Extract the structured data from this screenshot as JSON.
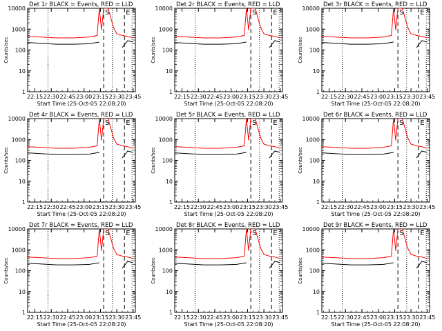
{
  "figure": {
    "background": "#ffffff",
    "events_color": "#000000",
    "lld_color": "#ff0000"
  },
  "chart_data": [
    {
      "type": "line",
      "title": "Det 1r BLACK = Events, RED = LLD",
      "xlabel": "Start Time (25-Oct-05 22:08:20)",
      "ylabel": "Counts/sec",
      "x_tick_labels": [
        "22:15",
        "22:30",
        "22:45",
        "23:00",
        "23:15",
        "23:30",
        "23:45"
      ],
      "y_tick_labels": [
        "1",
        "10",
        "100",
        "1000",
        "10000"
      ],
      "yscale": "log",
      "ylim": [
        1,
        10000
      ],
      "xlim": [
        "22:08:20",
        "23:47"
      ],
      "marker_labels": [
        "S",
        "E"
      ],
      "marker_times": [
        "23:18",
        "23:37"
      ],
      "dotted_markers": [
        "22:27",
        "23:26",
        "23:44"
      ],
      "series": [
        {
          "name": "Events",
          "x": [
            "22:08",
            "22:20",
            "22:35",
            "22:50",
            "23:05",
            "23:14",
            "23:18",
            "23:27",
            "23:33",
            "23:35",
            "23:40",
            "23:45"
          ],
          "values": [
            230,
            210,
            190,
            190,
            200,
            240,
            null,
            null,
            null,
            130,
            280,
            240
          ]
        },
        {
          "name": "LLD",
          "x": [
            "22:08",
            "22:20",
            "22:35",
            "22:50",
            "23:05",
            "23:12",
            "23:14",
            "23:16",
            "23:18",
            "23:22",
            "23:27",
            "23:30",
            "23:35",
            "23:40",
            "23:45"
          ],
          "values": [
            450,
            420,
            380,
            380,
            420,
            500,
            10000,
            900,
            10000,
            10000,
            1200,
            600,
            500,
            450,
            380
          ]
        }
      ]
    },
    {
      "type": "line",
      "title": "Det 2r BLACK = Events, RED = LLD",
      "xlabel": "Start Time (25-Oct-05 22:08:20)",
      "ylabel": "Counts/sec",
      "x_tick_labels": [
        "22:15",
        "22:30",
        "22:45",
        "23:00",
        "23:15",
        "23:30",
        "23:45"
      ],
      "y_tick_labels": [
        "1",
        "10",
        "100",
        "1000",
        "10000"
      ],
      "yscale": "log",
      "ylim": [
        1,
        10000
      ],
      "xlim": [
        "22:08:20",
        "23:47"
      ],
      "marker_labels": [
        "S",
        "E"
      ],
      "marker_times": [
        "23:18",
        "23:37"
      ],
      "dotted_markers": [
        "22:27",
        "23:26",
        "23:44"
      ],
      "series": [
        {
          "name": "Events",
          "x": [
            "22:08",
            "22:20",
            "22:35",
            "22:50",
            "23:05",
            "23:14",
            "23:18",
            "23:27",
            "23:33",
            "23:35",
            "23:40",
            "23:45"
          ],
          "values": [
            230,
            210,
            190,
            190,
            200,
            240,
            null,
            null,
            null,
            130,
            280,
            240
          ]
        },
        {
          "name": "LLD",
          "x": [
            "22:08",
            "22:20",
            "22:35",
            "22:50",
            "23:05",
            "23:12",
            "23:14",
            "23:16",
            "23:18",
            "23:22",
            "23:27",
            "23:30",
            "23:35",
            "23:40",
            "23:45"
          ],
          "values": [
            450,
            420,
            380,
            380,
            420,
            500,
            10000,
            900,
            10000,
            10000,
            1200,
            600,
            500,
            450,
            380
          ]
        }
      ]
    },
    {
      "type": "line",
      "title": "Det 3r BLACK = Events, RED = LLD",
      "xlabel": "Start Time (25-Oct-05 22:08:20)",
      "ylabel": "Counts/sec",
      "x_tick_labels": [
        "22:15",
        "22:30",
        "22:45",
        "23:00",
        "23:15",
        "23:30",
        "23:45"
      ],
      "y_tick_labels": [
        "1",
        "10",
        "100",
        "1000",
        "10000"
      ],
      "yscale": "log",
      "ylim": [
        1,
        10000
      ],
      "xlim": [
        "22:08:20",
        "23:47"
      ],
      "marker_labels": [
        "S",
        "E"
      ],
      "marker_times": [
        "23:18",
        "23:37"
      ],
      "dotted_markers": [
        "22:27",
        "23:26",
        "23:44"
      ],
      "series": [
        {
          "name": "Events",
          "x": [
            "22:08",
            "22:20",
            "22:35",
            "22:50",
            "23:05",
            "23:14",
            "23:18",
            "23:27",
            "23:33",
            "23:35",
            "23:40",
            "23:45"
          ],
          "values": [
            230,
            210,
            190,
            190,
            200,
            240,
            null,
            null,
            null,
            130,
            280,
            240
          ]
        },
        {
          "name": "LLD",
          "x": [
            "22:08",
            "22:20",
            "22:35",
            "22:50",
            "23:05",
            "23:12",
            "23:14",
            "23:16",
            "23:18",
            "23:22",
            "23:27",
            "23:30",
            "23:35",
            "23:40",
            "23:45"
          ],
          "values": [
            450,
            420,
            380,
            380,
            420,
            500,
            10000,
            900,
            10000,
            10000,
            1200,
            600,
            500,
            450,
            380
          ]
        }
      ]
    },
    {
      "type": "line",
      "title": "Det 4r BLACK = Events, RED = LLD",
      "xlabel": "Start Time (25-Oct-05 22:08:20)",
      "ylabel": "Counts/sec",
      "x_tick_labels": [
        "22:15",
        "22:30",
        "22:45",
        "23:00",
        "23:15",
        "23:30",
        "23:45"
      ],
      "y_tick_labels": [
        "1",
        "10",
        "100",
        "1000",
        "10000"
      ],
      "yscale": "log",
      "ylim": [
        1,
        10000
      ],
      "xlim": [
        "22:08:20",
        "23:47"
      ],
      "marker_labels": [
        "S",
        "E"
      ],
      "marker_times": [
        "23:18",
        "23:37"
      ],
      "dotted_markers": [
        "22:27",
        "23:26",
        "23:44"
      ],
      "series": [
        {
          "name": "Events",
          "x": [
            "22:08",
            "22:20",
            "22:35",
            "22:50",
            "23:05",
            "23:14",
            "23:18",
            "23:27",
            "23:33",
            "23:35",
            "23:40",
            "23:45"
          ],
          "values": [
            230,
            210,
            190,
            190,
            200,
            240,
            null,
            null,
            null,
            130,
            280,
            240
          ]
        },
        {
          "name": "LLD",
          "x": [
            "22:08",
            "22:20",
            "22:35",
            "22:50",
            "23:05",
            "23:12",
            "23:14",
            "23:16",
            "23:18",
            "23:22",
            "23:27",
            "23:30",
            "23:35",
            "23:40",
            "23:45"
          ],
          "values": [
            450,
            420,
            380,
            380,
            420,
            500,
            10000,
            900,
            10000,
            10000,
            1200,
            600,
            500,
            450,
            380
          ]
        }
      ]
    },
    {
      "type": "line",
      "title": "Det 5r BLACK = Events, RED = LLD",
      "xlabel": "Start Time (25-Oct-05 22:08:20)",
      "ylabel": "Counts/sec",
      "x_tick_labels": [
        "22:15",
        "22:30",
        "22:45",
        "23:00",
        "23:15",
        "23:30",
        "23:45"
      ],
      "y_tick_labels": [
        "1",
        "10",
        "100",
        "1000",
        "10000"
      ],
      "yscale": "log",
      "ylim": [
        1,
        10000
      ],
      "xlim": [
        "22:08:20",
        "23:47"
      ],
      "marker_labels": [
        "S",
        "E"
      ],
      "marker_times": [
        "23:18",
        "23:37"
      ],
      "dotted_markers": [
        "22:27",
        "23:26",
        "23:44"
      ],
      "series": [
        {
          "name": "Events",
          "x": [
            "22:08",
            "22:20",
            "22:35",
            "22:50",
            "23:05",
            "23:14",
            "23:18",
            "23:27",
            "23:33",
            "23:35",
            "23:40",
            "23:45"
          ],
          "values": [
            230,
            210,
            190,
            190,
            200,
            240,
            null,
            null,
            null,
            130,
            280,
            240
          ]
        },
        {
          "name": "LLD",
          "x": [
            "22:08",
            "22:20",
            "22:35",
            "22:50",
            "23:05",
            "23:12",
            "23:14",
            "23:16",
            "23:18",
            "23:22",
            "23:27",
            "23:30",
            "23:35",
            "23:40",
            "23:45"
          ],
          "values": [
            450,
            420,
            380,
            380,
            420,
            500,
            10000,
            900,
            10000,
            10000,
            1200,
            600,
            500,
            450,
            380
          ]
        }
      ]
    },
    {
      "type": "line",
      "title": "Det 6r BLACK = Events, RED = LLD",
      "xlabel": "Start Time (25-Oct-05 22:08:20)",
      "ylabel": "Counts/sec",
      "x_tick_labels": [
        "22:15",
        "22:30",
        "22:45",
        "23:00",
        "23:15",
        "23:30",
        "23:45"
      ],
      "y_tick_labels": [
        "1",
        "10",
        "100",
        "1000",
        "10000"
      ],
      "yscale": "log",
      "ylim": [
        1,
        10000
      ],
      "xlim": [
        "22:08:20",
        "23:47"
      ],
      "marker_labels": [
        "S",
        "E"
      ],
      "marker_times": [
        "23:18",
        "23:37"
      ],
      "dotted_markers": [
        "22:27",
        "23:26",
        "23:44"
      ],
      "series": [
        {
          "name": "Events",
          "x": [
            "22:08",
            "22:20",
            "22:35",
            "22:50",
            "23:05",
            "23:14",
            "23:18",
            "23:27",
            "23:33",
            "23:35",
            "23:40",
            "23:45"
          ],
          "values": [
            230,
            210,
            190,
            190,
            200,
            240,
            null,
            null,
            null,
            130,
            280,
            240
          ]
        },
        {
          "name": "LLD",
          "x": [
            "22:08",
            "22:20",
            "22:35",
            "22:50",
            "23:05",
            "23:12",
            "23:14",
            "23:16",
            "23:18",
            "23:22",
            "23:27",
            "23:30",
            "23:35",
            "23:40",
            "23:45"
          ],
          "values": [
            450,
            420,
            380,
            380,
            420,
            500,
            10000,
            900,
            10000,
            10000,
            1200,
            600,
            500,
            450,
            380
          ]
        }
      ]
    },
    {
      "type": "line",
      "title": "Det 7r BLACK = Events, RED = LLD",
      "xlabel": "Start Time (25-Oct-05 22:08:20)",
      "ylabel": "Counts/sec",
      "x_tick_labels": [
        "22:15",
        "22:30",
        "22:45",
        "23:00",
        "23:15",
        "23:30",
        "23:45"
      ],
      "y_tick_labels": [
        "1",
        "10",
        "100",
        "1000",
        "10000"
      ],
      "yscale": "log",
      "ylim": [
        1,
        10000
      ],
      "xlim": [
        "22:08:20",
        "23:47"
      ],
      "marker_labels": [
        "S",
        "E"
      ],
      "marker_times": [
        "23:18",
        "23:37"
      ],
      "dotted_markers": [
        "22:27",
        "23:26",
        "23:44"
      ],
      "series": [
        {
          "name": "Events",
          "x": [
            "22:08",
            "22:20",
            "22:35",
            "22:50",
            "23:05",
            "23:14",
            "23:18",
            "23:27",
            "23:33",
            "23:35",
            "23:40",
            "23:45"
          ],
          "values": [
            230,
            210,
            190,
            190,
            200,
            240,
            null,
            null,
            null,
            130,
            280,
            240
          ]
        },
        {
          "name": "LLD",
          "x": [
            "22:08",
            "22:20",
            "22:35",
            "22:50",
            "23:05",
            "23:12",
            "23:14",
            "23:16",
            "23:18",
            "23:22",
            "23:27",
            "23:30",
            "23:35",
            "23:40",
            "23:45"
          ],
          "values": [
            450,
            420,
            380,
            380,
            420,
            500,
            10000,
            900,
            10000,
            10000,
            1200,
            600,
            500,
            450,
            380
          ]
        }
      ]
    },
    {
      "type": "line",
      "title": "Det 8r BLACK = Events, RED = LLD",
      "xlabel": "Start Time (25-Oct-05 22:08:20)",
      "ylabel": "Counts/sec",
      "x_tick_labels": [
        "22:15",
        "22:30",
        "22:45",
        "23:00",
        "23:15",
        "23:30",
        "23:45"
      ],
      "y_tick_labels": [
        "1",
        "10",
        "100",
        "1000",
        "10000"
      ],
      "yscale": "log",
      "ylim": [
        1,
        10000
      ],
      "xlim": [
        "22:08:20",
        "23:47"
      ],
      "marker_labels": [
        "S",
        "E"
      ],
      "marker_times": [
        "23:18",
        "23:37"
      ],
      "dotted_markers": [
        "22:27",
        "23:26",
        "23:44"
      ],
      "series": [
        {
          "name": "Events",
          "x": [
            "22:08",
            "22:20",
            "22:35",
            "22:50",
            "23:05",
            "23:14",
            "23:18",
            "23:27",
            "23:33",
            "23:35",
            "23:40",
            "23:45"
          ],
          "values": [
            230,
            210,
            190,
            190,
            200,
            240,
            null,
            null,
            null,
            130,
            280,
            240
          ]
        },
        {
          "name": "LLD",
          "x": [
            "22:08",
            "22:20",
            "22:35",
            "22:50",
            "23:05",
            "23:12",
            "23:14",
            "23:16",
            "23:18",
            "23:22",
            "23:27",
            "23:30",
            "23:35",
            "23:40",
            "23:45"
          ],
          "values": [
            450,
            420,
            380,
            380,
            420,
            500,
            10000,
            900,
            10000,
            10000,
            1200,
            600,
            500,
            450,
            380
          ]
        }
      ]
    },
    {
      "type": "line",
      "title": "Det 9r BLACK = Events, RED = LLD",
      "xlabel": "Start Time (25-Oct-05 22:08:20)",
      "ylabel": "Counts/sec",
      "x_tick_labels": [
        "22:15",
        "22:30",
        "22:45",
        "23:00",
        "23:15",
        "23:30",
        "23:45"
      ],
      "y_tick_labels": [
        "1",
        "10",
        "100",
        "1000",
        "10000"
      ],
      "yscale": "log",
      "ylim": [
        1,
        10000
      ],
      "xlim": [
        "22:08:20",
        "23:47"
      ],
      "marker_labels": [
        "S",
        "E"
      ],
      "marker_times": [
        "23:18",
        "23:37"
      ],
      "dotted_markers": [
        "22:27",
        "23:26",
        "23:44"
      ],
      "series": [
        {
          "name": "Events",
          "x": [
            "22:08",
            "22:20",
            "22:35",
            "22:50",
            "23:05",
            "23:14",
            "23:18",
            "23:27",
            "23:33",
            "23:35",
            "23:40",
            "23:45"
          ],
          "values": [
            230,
            210,
            190,
            190,
            200,
            240,
            null,
            null,
            null,
            130,
            280,
            240
          ]
        },
        {
          "name": "LLD",
          "x": [
            "22:08",
            "22:20",
            "22:35",
            "22:50",
            "23:05",
            "23:12",
            "23:14",
            "23:16",
            "23:18",
            "23:22",
            "23:27",
            "23:30",
            "23:35",
            "23:40",
            "23:45"
          ],
          "values": [
            450,
            420,
            380,
            380,
            420,
            500,
            10000,
            900,
            10000,
            10000,
            1200,
            600,
            500,
            450,
            380
          ]
        }
      ]
    }
  ]
}
